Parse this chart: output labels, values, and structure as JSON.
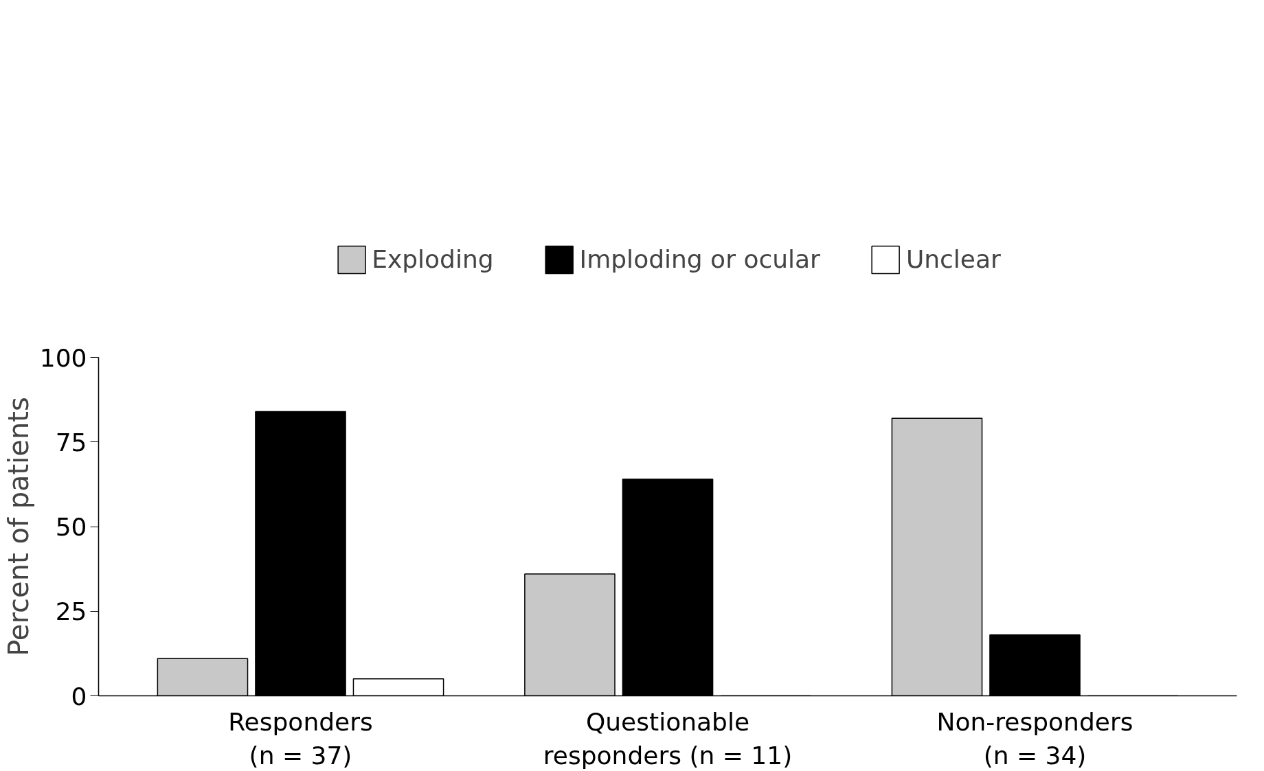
{
  "chart_data": {
    "type": "bar",
    "ylabel": "Percent of patients",
    "categories": [
      "Responders\n(n = 37)",
      "Questionable\nresponders (n = 11)",
      "Non-responders\n(n = 34)"
    ],
    "series": [
      {
        "name": "Exploding",
        "color": "#c8c8c8",
        "values": [
          11,
          36,
          82
        ]
      },
      {
        "name": "Imploding or ocular",
        "color": "#000000",
        "values": [
          84,
          64,
          18
        ]
      },
      {
        "name": "Unclear",
        "color": "#ffffff",
        "values": [
          5,
          0,
          0
        ]
      }
    ],
    "ylim": [
      0,
      100
    ],
    "yticks": [
      0,
      25,
      50,
      75,
      100
    ],
    "grid": false,
    "legend": "top"
  }
}
